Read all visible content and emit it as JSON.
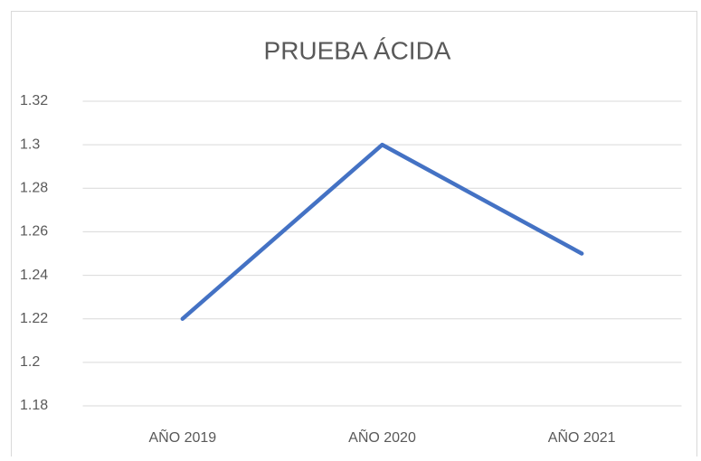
{
  "chart_data": {
    "type": "line",
    "title": "PRUEBA ÁCIDA",
    "categories": [
      "AÑO 2019",
      "AÑO 2020",
      "AÑO 2021"
    ],
    "values": [
      1.22,
      1.3,
      1.25
    ],
    "color": "#4472c4",
    "ylim": [
      1.18,
      1.32
    ],
    "yticks": [
      1.18,
      1.2,
      1.22,
      1.24,
      1.26,
      1.28,
      1.3,
      1.32
    ],
    "grid": true
  }
}
